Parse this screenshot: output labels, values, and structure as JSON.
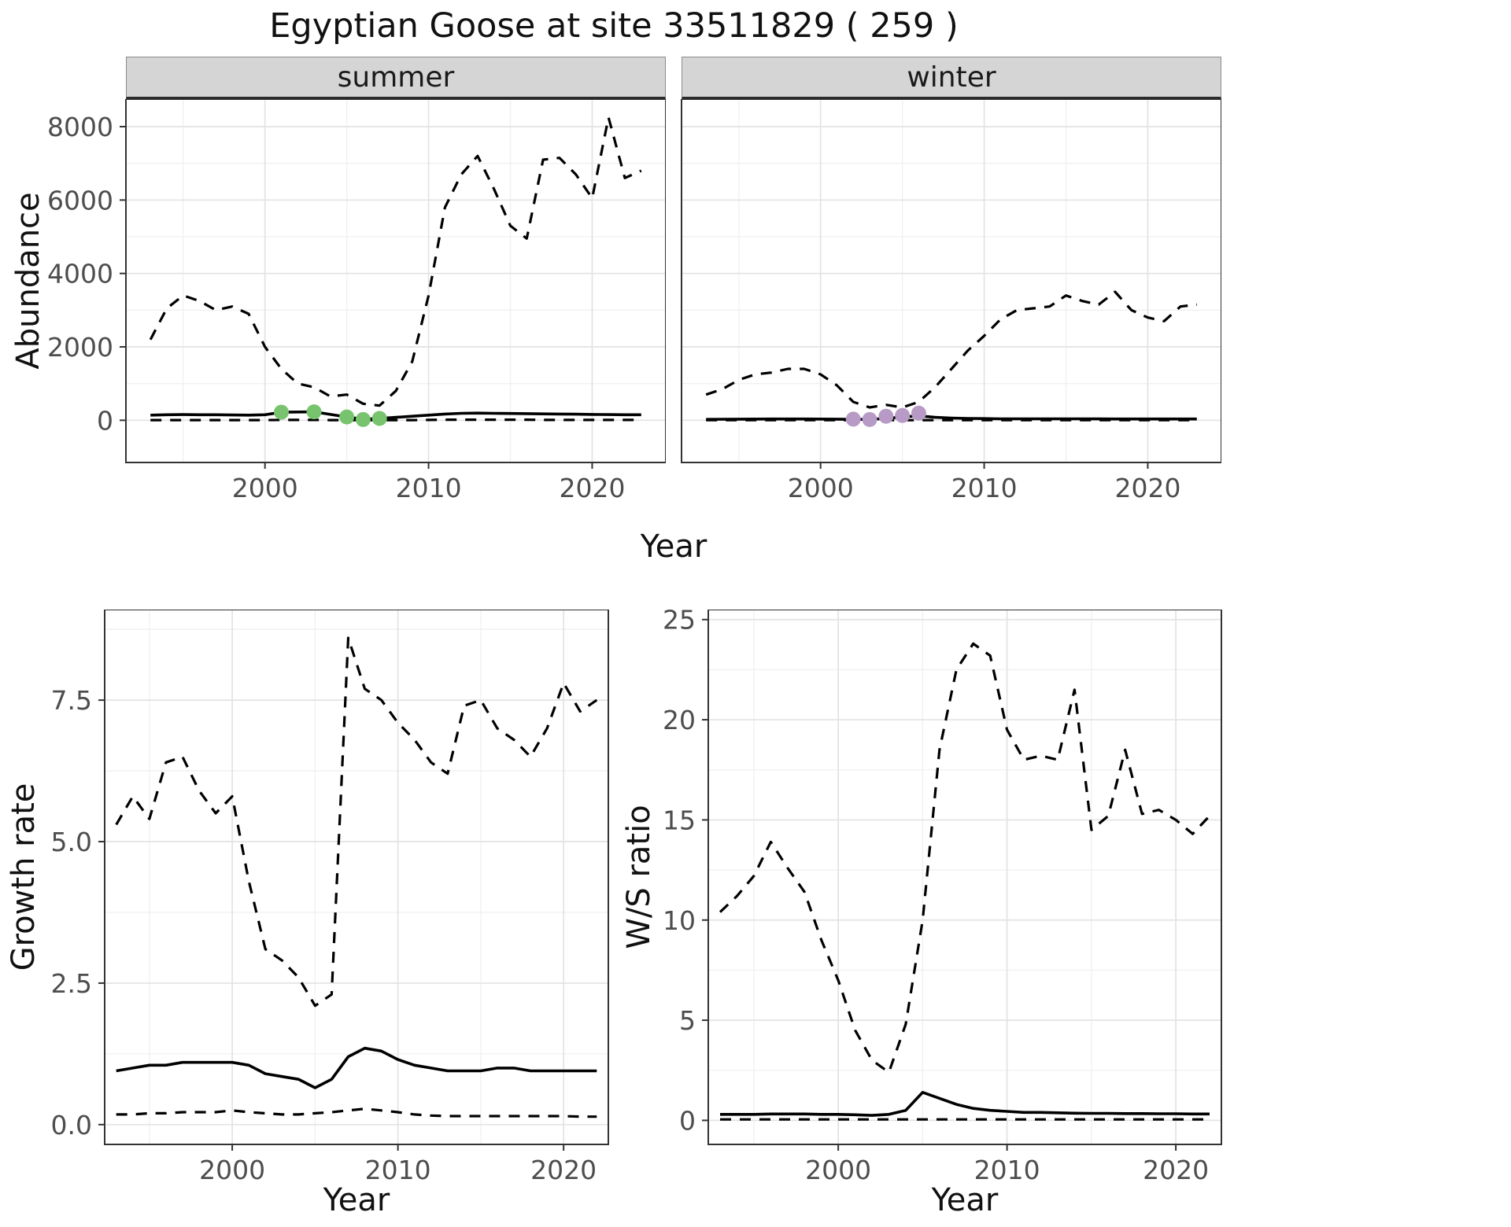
{
  "title": "Egyptian Goose at site 33511829 ( 259 )",
  "style": {
    "line": "#000000",
    "panel_border": "#333333",
    "grid_major": "#e3e3e3",
    "grid_minor": "#f0f0f0",
    "tick_text": "#4d4d4d",
    "strip_bg": "#d5d5d5",
    "summer_point_color": "#77c36e",
    "winter_point_color": "#b79ac5"
  },
  "chart_data": [
    {
      "id": "abundance-summer",
      "type": "line",
      "facet": "summer",
      "xlabel": "Year",
      "ylabel": "Abundance",
      "xlim": [
        1991.5,
        2024.5
      ],
      "ylim": [
        -1150,
        8750
      ],
      "x": [
        1993,
        1994,
        1995,
        1996,
        1997,
        1998,
        1999,
        2000,
        2001,
        2002,
        2003,
        2004,
        2005,
        2006,
        2007,
        2008,
        2009,
        2010,
        2011,
        2012,
        2013,
        2014,
        2015,
        2016,
        2017,
        2018,
        2019,
        2020,
        2021,
        2022,
        2023
      ],
      "xticks": {
        "values": [
          2000,
          2010,
          2020
        ],
        "labels": [
          "2000",
          "2010",
          "2020"
        ],
        "minor": [
          1995,
          2005,
          2015
        ]
      },
      "yticks": {
        "values": [
          0,
          2000,
          4000,
          6000,
          8000
        ],
        "labels": [
          "0",
          "2000",
          "4000",
          "6000",
          "8000"
        ],
        "minor": [
          1000,
          3000,
          5000,
          7000
        ]
      },
      "series": [
        {
          "name": "upper-ci",
          "style": "dashed",
          "values": [
            2200,
            3050,
            3400,
            3250,
            3000,
            3100,
            2900,
            2000,
            1400,
            1000,
            900,
            650,
            700,
            450,
            400,
            800,
            1600,
            3400,
            5800,
            6700,
            7200,
            6300,
            5300,
            4950,
            7100,
            7150,
            6700,
            6050,
            8250,
            6600,
            6800
          ]
        },
        {
          "name": "mean",
          "style": "solid",
          "values": [
            140,
            150,
            155,
            150,
            150,
            145,
            140,
            150,
            220,
            225,
            230,
            160,
            90,
            30,
            50,
            80,
            110,
            140,
            170,
            190,
            195,
            190,
            185,
            180,
            175,
            170,
            165,
            160,
            155,
            150,
            150
          ]
        },
        {
          "name": "lower-ci",
          "style": "dashed",
          "values": [
            5,
            5,
            5,
            5,
            5,
            5,
            5,
            5,
            10,
            10,
            10,
            5,
            5,
            2,
            2,
            5,
            5,
            10,
            15,
            15,
            15,
            15,
            15,
            15,
            10,
            10,
            10,
            10,
            10,
            10,
            10
          ]
        }
      ],
      "points": {
        "name": "observed-counts",
        "color": "#77c36e",
        "x": [
          2001,
          2003,
          2005,
          2006,
          2007
        ],
        "y": [
          220,
          230,
          90,
          20,
          50
        ]
      }
    },
    {
      "id": "abundance-winter",
      "type": "line",
      "facet": "winter",
      "xlabel": "Year",
      "ylabel": "Abundance",
      "xlim": [
        1991.5,
        2024.5
      ],
      "ylim": [
        -1150,
        8750
      ],
      "x": [
        1993,
        1994,
        1995,
        1996,
        1997,
        1998,
        1999,
        2000,
        2001,
        2002,
        2003,
        2004,
        2005,
        2006,
        2007,
        2008,
        2009,
        2010,
        2011,
        2012,
        2013,
        2014,
        2015,
        2016,
        2017,
        2018,
        2019,
        2020,
        2021,
        2022,
        2023
      ],
      "xticks": {
        "values": [
          2000,
          2010,
          2020
        ],
        "labels": [
          "2000",
          "2010",
          "2020"
        ],
        "minor": [
          1995,
          2005,
          2015
        ]
      },
      "yticks": {
        "values": [
          0,
          2000,
          4000,
          6000,
          8000
        ],
        "labels": [
          "0",
          "2000",
          "4000",
          "6000",
          "8000"
        ],
        "minor": [
          1000,
          3000,
          5000,
          7000
        ]
      },
      "series": [
        {
          "name": "upper-ci",
          "style": "dashed",
          "values": [
            700,
            850,
            1100,
            1250,
            1300,
            1400,
            1400,
            1250,
            950,
            500,
            350,
            420,
            350,
            500,
            900,
            1400,
            1900,
            2300,
            2750,
            3000,
            3050,
            3100,
            3400,
            3250,
            3150,
            3500,
            3000,
            2800,
            2700,
            3100,
            3150
          ]
        },
        {
          "name": "mean",
          "style": "solid",
          "values": [
            25,
            28,
            30,
            32,
            35,
            35,
            35,
            32,
            30,
            25,
            25,
            50,
            90,
            120,
            80,
            60,
            50,
            45,
            40,
            40,
            40,
            40,
            40,
            40,
            38,
            36,
            35,
            35,
            35,
            35,
            35
          ]
        },
        {
          "name": "lower-ci",
          "style": "dashed",
          "values": [
            2,
            2,
            2,
            2,
            2,
            2,
            2,
            2,
            2,
            2,
            2,
            2,
            2,
            2,
            2,
            2,
            2,
            2,
            2,
            2,
            2,
            2,
            2,
            2,
            2,
            2,
            2,
            2,
            2,
            2,
            2
          ]
        }
      ],
      "points": {
        "name": "observed-counts",
        "color": "#b79ac5",
        "x": [
          2002,
          2003,
          2004,
          2005,
          2006
        ],
        "y": [
          30,
          20,
          110,
          130,
          195
        ]
      }
    },
    {
      "id": "growth-rate",
      "type": "line",
      "facet": "",
      "xlabel": "Year",
      "ylabel": "Growth rate",
      "xlim": [
        1992.3,
        2022.7
      ],
      "ylim": [
        -0.35,
        9.1
      ],
      "x": [
        1993,
        1994,
        1995,
        1996,
        1997,
        1998,
        1999,
        2000,
        2001,
        2002,
        2003,
        2004,
        2005,
        2006,
        2007,
        2008,
        2009,
        2010,
        2011,
        2012,
        2013,
        2014,
        2015,
        2016,
        2017,
        2018,
        2019,
        2020,
        2021,
        2022
      ],
      "xticks": {
        "values": [
          2000,
          2010,
          2020
        ],
        "labels": [
          "2000",
          "2010",
          "2020"
        ],
        "minor": [
          1995,
          2005,
          2015
        ]
      },
      "yticks": {
        "values": [
          0,
          2.5,
          5,
          7.5
        ],
        "labels": [
          "0.0",
          "2.5",
          "5.0",
          "7.5"
        ],
        "minor": [
          1.25,
          3.75,
          6.25,
          8.75
        ]
      },
      "series": [
        {
          "name": "upper-ci",
          "style": "dashed",
          "values": [
            5.3,
            5.8,
            5.4,
            6.4,
            6.5,
            5.9,
            5.5,
            5.8,
            4.3,
            3.1,
            2.9,
            2.6,
            2.1,
            2.3,
            8.6,
            7.7,
            7.5,
            7.1,
            6.8,
            6.4,
            6.2,
            7.4,
            7.5,
            7.0,
            6.8,
            6.5,
            7.0,
            7.8,
            7.3,
            7.5
          ]
        },
        {
          "name": "mean",
          "style": "solid",
          "values": [
            0.95,
            1.0,
            1.05,
            1.05,
            1.1,
            1.1,
            1.1,
            1.1,
            1.05,
            0.9,
            0.85,
            0.8,
            0.65,
            0.8,
            1.2,
            1.35,
            1.3,
            1.15,
            1.05,
            1.0,
            0.95,
            0.95,
            0.95,
            1.0,
            1.0,
            0.95,
            0.95,
            0.95,
            0.95,
            0.95
          ]
        },
        {
          "name": "lower-ci",
          "style": "dashed",
          "values": [
            0.18,
            0.18,
            0.2,
            0.2,
            0.22,
            0.22,
            0.22,
            0.25,
            0.22,
            0.2,
            0.18,
            0.18,
            0.2,
            0.22,
            0.25,
            0.28,
            0.25,
            0.22,
            0.18,
            0.16,
            0.15,
            0.15,
            0.15,
            0.15,
            0.15,
            0.15,
            0.15,
            0.15,
            0.14,
            0.14
          ]
        }
      ]
    },
    {
      "id": "ws-ratio",
      "type": "line",
      "facet": "",
      "xlabel": "Year",
      "ylabel": "W/S ratio",
      "xlim": [
        1992.3,
        2022.7
      ],
      "ylim": [
        -1.2,
        25.5
      ],
      "x": [
        1993,
        1994,
        1995,
        1996,
        1997,
        1998,
        1999,
        2000,
        2001,
        2002,
        2003,
        2004,
        2005,
        2006,
        2007,
        2008,
        2009,
        2010,
        2011,
        2012,
        2013,
        2014,
        2015,
        2016,
        2017,
        2018,
        2019,
        2020,
        2021,
        2022
      ],
      "xticks": {
        "values": [
          2000,
          2010,
          2020
        ],
        "labels": [
          "2000",
          "2010",
          "2020"
        ],
        "minor": [
          1995,
          2005,
          2015
        ]
      },
      "yticks": {
        "values": [
          0,
          5,
          10,
          15,
          20,
          25
        ],
        "labels": [
          "0",
          "5",
          "10",
          "15",
          "20",
          "25"
        ],
        "minor": [
          2.5,
          7.5,
          12.5,
          17.5,
          22.5
        ]
      },
      "series": [
        {
          "name": "upper-ci",
          "style": "dashed",
          "values": [
            10.4,
            11.2,
            12.2,
            13.9,
            12.6,
            11.4,
            9.0,
            7.0,
            4.5,
            3.0,
            2.4,
            4.8,
            10.0,
            18.5,
            22.5,
            23.8,
            23.2,
            19.5,
            18.0,
            18.2,
            18.0,
            21.5,
            14.5,
            15.2,
            18.5,
            15.3,
            15.5,
            15.0,
            14.3,
            15.2
          ]
        },
        {
          "name": "mean",
          "style": "solid",
          "values": [
            0.3,
            0.3,
            0.3,
            0.32,
            0.32,
            0.32,
            0.3,
            0.3,
            0.28,
            0.25,
            0.3,
            0.5,
            1.4,
            1.1,
            0.8,
            0.6,
            0.5,
            0.45,
            0.4,
            0.4,
            0.38,
            0.36,
            0.35,
            0.35,
            0.34,
            0.34,
            0.33,
            0.33,
            0.32,
            0.32
          ]
        },
        {
          "name": "lower-ci",
          "style": "dashed",
          "values": [
            0.05,
            0.05,
            0.05,
            0.05,
            0.05,
            0.05,
            0.05,
            0.05,
            0.05,
            0.05,
            0.05,
            0.05,
            0.05,
            0.05,
            0.05,
            0.05,
            0.05,
            0.05,
            0.05,
            0.05,
            0.05,
            0.05,
            0.05,
            0.05,
            0.05,
            0.05,
            0.05,
            0.05,
            0.05,
            0.05
          ]
        }
      ]
    }
  ]
}
